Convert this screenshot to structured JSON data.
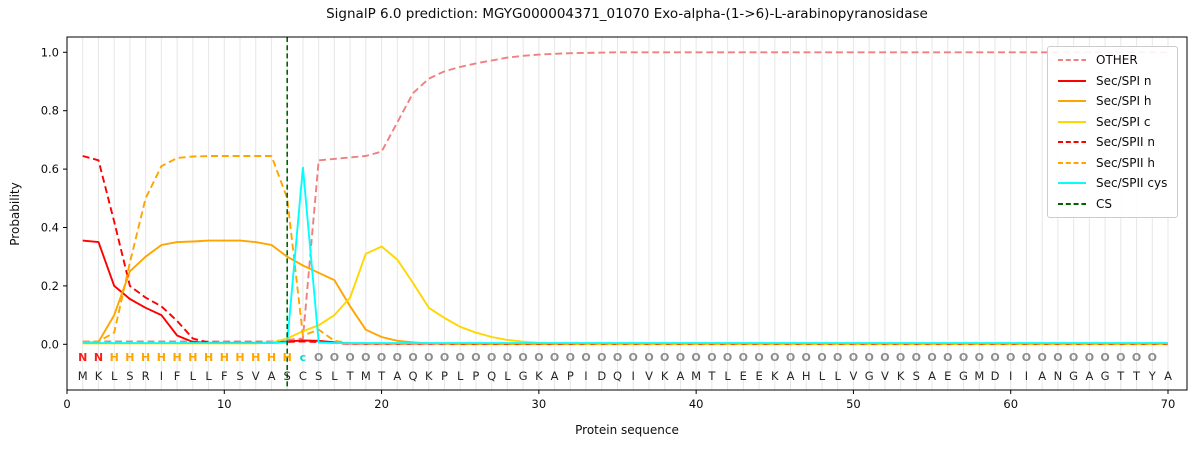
{
  "title": "SignalP 6.0 prediction: MGYG000004371_01070 Exo-alpha-(1->6)-L-arabinopyranosidase",
  "axes": {
    "ylabel": "Probability",
    "xlabel": "Protein sequence",
    "yticks": [
      0.0,
      0.2,
      0.4,
      0.6,
      0.8,
      1.0
    ],
    "xticks": [
      0,
      10,
      20,
      30,
      40,
      50,
      60,
      70
    ],
    "xlim": [
      0,
      71.2
    ],
    "ylim": [
      -0.16,
      1.05
    ],
    "grid": "vertical-per-residue"
  },
  "legend": {
    "position": "upper-right",
    "items": [
      {
        "label": "OTHER",
        "color": "#f08080",
        "dashed": true
      },
      {
        "label": "Sec/SPI n",
        "color": "#ff0000",
        "dashed": false
      },
      {
        "label": "Sec/SPI h",
        "color": "#ffa500",
        "dashed": false
      },
      {
        "label": "Sec/SPI c",
        "color": "#ffd700",
        "dashed": false
      },
      {
        "label": "Sec/SPII n",
        "color": "#ff0000",
        "dashed": true
      },
      {
        "label": "Sec/SPII h",
        "color": "#ffa500",
        "dashed": true
      },
      {
        "label": "Sec/SPII cys",
        "color": "#00ffff",
        "dashed": false
      },
      {
        "label": "CS",
        "color": "#006400",
        "dashed": true
      }
    ]
  },
  "chart_data": {
    "type": "line",
    "title": "SignalP 6.0 prediction: MGYG000004371_01070 Exo-alpha-(1->6)-L-arabinopyranosidase",
    "xlabel": "Protein sequence",
    "ylabel": "Probability",
    "x_positions": "residues 1-70",
    "series": [
      {
        "name": "OTHER",
        "color": "#f08080",
        "style": "dashed",
        "values": [
          0.01,
          0.01,
          0.01,
          0.01,
          0.01,
          0.01,
          0.01,
          0.01,
          0.01,
          0.01,
          0.01,
          0.01,
          0.01,
          0.015,
          0.02,
          0.63,
          0.635,
          0.64,
          0.645,
          0.66,
          0.76,
          0.86,
          0.91,
          0.935,
          0.95,
          0.962,
          0.972,
          0.982,
          0.988,
          0.992,
          0.995,
          0.997,
          0.998,
          0.999,
          1.0,
          1.0,
          1.0,
          1.0,
          1.0,
          1.0,
          1.0,
          1.0,
          1.0,
          1.0,
          1.0,
          1.0,
          1.0,
          1.0,
          1.0,
          1.0,
          1.0,
          1.0,
          1.0,
          1.0,
          1.0,
          1.0,
          1.0,
          1.0,
          1.0,
          1.0,
          1.0,
          1.0,
          1.0,
          1.0,
          1.0,
          1.0,
          1.0,
          1.0,
          1.0,
          1.0
        ]
      },
      {
        "name": "Sec/SPI n",
        "color": "#ff0000",
        "style": "solid",
        "values": [
          0.355,
          0.35,
          0.2,
          0.155,
          0.125,
          0.1,
          0.03,
          0.008,
          0.005,
          0.005,
          0.005,
          0.005,
          0.005,
          0.01,
          0.013,
          0.012,
          0.007,
          0.003,
          0.002,
          0.002,
          0.002,
          0.002,
          0.002,
          0.002,
          0.002,
          0.002,
          0.002,
          0.002,
          0.002,
          0.002,
          0.002,
          0.002,
          0.002,
          0.002,
          0.002,
          0.002,
          0.002,
          0.002,
          0.002,
          0.002,
          0.002,
          0.002,
          0.002,
          0.002,
          0.002,
          0.002,
          0.002,
          0.002,
          0.002,
          0.002,
          0.002,
          0.002,
          0.002,
          0.002,
          0.002,
          0.002,
          0.002,
          0.002,
          0.002,
          0.002,
          0.002,
          0.002,
          0.002,
          0.002,
          0.002,
          0.002,
          0.002,
          0.002,
          0.002,
          0.002
        ]
      },
      {
        "name": "Sec/SPI h",
        "color": "#ffa500",
        "style": "solid",
        "values": [
          0.005,
          0.008,
          0.1,
          0.25,
          0.3,
          0.34,
          0.35,
          0.352,
          0.355,
          0.355,
          0.355,
          0.35,
          0.34,
          0.3,
          0.27,
          0.245,
          0.22,
          0.13,
          0.05,
          0.025,
          0.012,
          0.007,
          0.003,
          0.002,
          0.001,
          0.001,
          0.001,
          0.001,
          0.001,
          0.001,
          0.001,
          0.001,
          0.001,
          0.001,
          0.001,
          0.001,
          0.001,
          0.001,
          0.001,
          0.001,
          0.001,
          0.001,
          0.001,
          0.001,
          0.001,
          0.001,
          0.001,
          0.001,
          0.001,
          0.001,
          0.001,
          0.001,
          0.001,
          0.001,
          0.001,
          0.001,
          0.001,
          0.001,
          0.001,
          0.001,
          0.001,
          0.001,
          0.001,
          0.001,
          0.001,
          0.001,
          0.001,
          0.001,
          0.001,
          0.001
        ]
      },
      {
        "name": "Sec/SPI c",
        "color": "#ffd700",
        "style": "solid",
        "values": [
          0.003,
          0.003,
          0.003,
          0.003,
          0.003,
          0.003,
          0.003,
          0.003,
          0.003,
          0.003,
          0.003,
          0.003,
          0.006,
          0.02,
          0.045,
          0.065,
          0.1,
          0.16,
          0.31,
          0.335,
          0.29,
          0.21,
          0.125,
          0.09,
          0.06,
          0.04,
          0.025,
          0.015,
          0.009,
          0.005,
          0.003,
          0.002,
          0.001,
          0.001,
          0.001,
          0.001,
          0.001,
          0.001,
          0.001,
          0.001,
          0.001,
          0.001,
          0.001,
          0.001,
          0.001,
          0.001,
          0.001,
          0.001,
          0.001,
          0.001,
          0.001,
          0.001,
          0.001,
          0.001,
          0.001,
          0.001,
          0.001,
          0.001,
          0.001,
          0.001,
          0.001,
          0.001,
          0.001,
          0.001,
          0.001,
          0.001,
          0.001,
          0.001,
          0.001,
          0.001
        ]
      },
      {
        "name": "Sec/SPII n",
        "color": "#ff0000",
        "style": "dashed",
        "values": [
          0.645,
          0.63,
          0.42,
          0.2,
          0.16,
          0.13,
          0.08,
          0.02,
          0.006,
          0.004,
          0.004,
          0.004,
          0.004,
          0.008,
          0.01,
          0.008,
          0.004,
          0.002,
          0.002,
          0.002,
          0.002,
          0.002,
          0.002,
          0.002,
          0.002,
          0.002,
          0.002,
          0.002,
          0.002,
          0.002,
          0.002,
          0.002,
          0.002,
          0.002,
          0.002,
          0.002,
          0.002,
          0.002,
          0.002,
          0.002,
          0.002,
          0.002,
          0.002,
          0.002,
          0.002,
          0.002,
          0.002,
          0.002,
          0.002,
          0.002,
          0.002,
          0.002,
          0.002,
          0.002,
          0.002,
          0.002,
          0.002,
          0.002,
          0.002,
          0.002,
          0.002,
          0.002,
          0.002,
          0.002,
          0.002,
          0.002,
          0.002,
          0.002,
          0.002,
          0.002
        ]
      },
      {
        "name": "Sec/SPII h",
        "color": "#ffa500",
        "style": "dashed",
        "values": [
          0.008,
          0.01,
          0.04,
          0.28,
          0.5,
          0.61,
          0.638,
          0.643,
          0.645,
          0.645,
          0.645,
          0.645,
          0.645,
          0.5,
          0.03,
          0.05,
          0.012,
          0.004,
          0.003,
          0.003,
          0.003,
          0.003,
          0.003,
          0.003,
          0.003,
          0.003,
          0.003,
          0.003,
          0.003,
          0.003,
          0.003,
          0.003,
          0.003,
          0.003,
          0.003,
          0.003,
          0.003,
          0.003,
          0.003,
          0.003,
          0.003,
          0.003,
          0.003,
          0.003,
          0.003,
          0.003,
          0.003,
          0.003,
          0.003,
          0.003,
          0.003,
          0.003,
          0.003,
          0.003,
          0.003,
          0.003,
          0.003,
          0.003,
          0.003,
          0.003,
          0.003,
          0.003,
          0.003,
          0.003,
          0.003,
          0.003,
          0.003,
          0.003,
          0.003,
          0.003
        ]
      },
      {
        "name": "Sec/SPII cys",
        "color": "#00ffff",
        "style": "solid",
        "values": [
          0.004,
          0.004,
          0.004,
          0.004,
          0.004,
          0.004,
          0.004,
          0.004,
          0.004,
          0.004,
          0.004,
          0.004,
          0.004,
          0.006,
          0.605,
          0.006,
          0.004,
          0.004,
          0.004,
          0.004,
          0.004,
          0.004,
          0.004,
          0.004,
          0.004,
          0.004,
          0.004,
          0.004,
          0.004,
          0.004,
          0.004,
          0.004,
          0.004,
          0.004,
          0.004,
          0.004,
          0.004,
          0.004,
          0.004,
          0.004,
          0.004,
          0.004,
          0.004,
          0.004,
          0.004,
          0.004,
          0.004,
          0.004,
          0.004,
          0.004,
          0.004,
          0.004,
          0.004,
          0.004,
          0.004,
          0.004,
          0.004,
          0.004,
          0.004,
          0.004,
          0.004,
          0.004,
          0.004,
          0.004,
          0.004,
          0.004,
          0.004,
          0.004,
          0.004,
          0.004
        ]
      }
    ],
    "cs_marker": {
      "name": "CS",
      "x": 14,
      "color": "#006400",
      "style": "dashed",
      "orientation": "vertical"
    },
    "sequence": "MKLSRIFLLFSVASCSLTMTAQKPLPQLGKAPIDQIVKAMTLEEKAHLLVGVKSAEGMDIIANGAGTTYA",
    "residue_labels": "NNHHHHHHHHHHHHcOOOOOOOOOOOOOOOOOOOOOOOOOOOOOOOOOOOOOOOOOOOOOOOOOOOOOO",
    "residue_label_colors": {
      "N": "#ff1a1a",
      "H": "#ffa500",
      "c": "#00dbdb",
      "O": "#8c8c8c"
    },
    "sequence_color": "#262626"
  }
}
